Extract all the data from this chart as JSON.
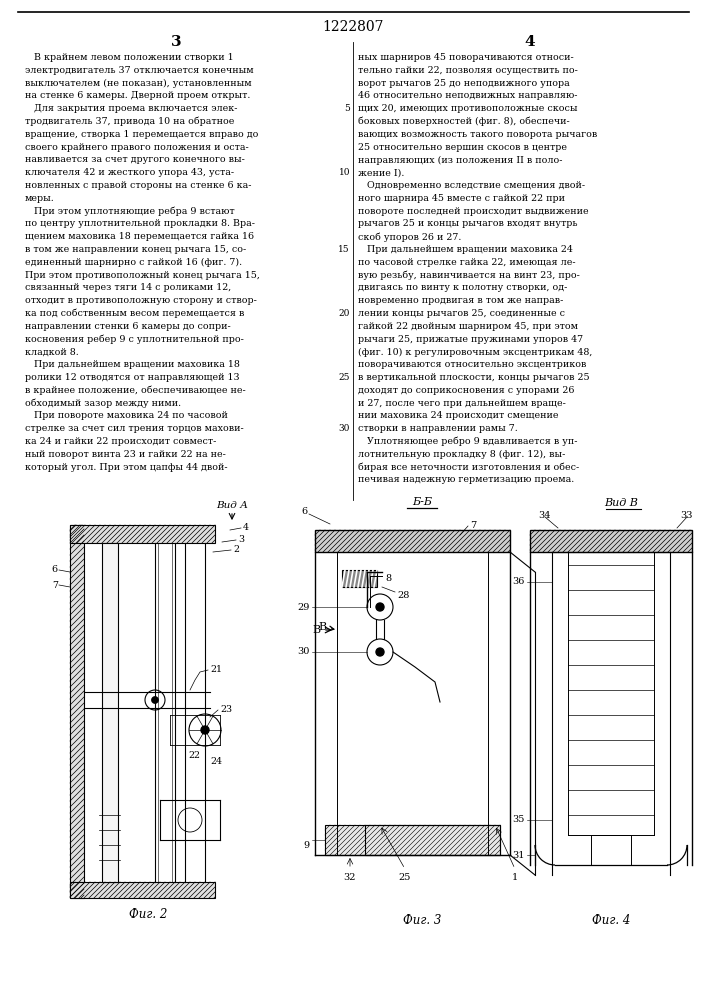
{
  "title": "1222807",
  "page_col_left": "3",
  "page_col_right": "4",
  "bg_color": "#ffffff",
  "text_color": "#000000",
  "text_left_lines": [
    "   В крайнем левом положении створки 1",
    "электродвигатель 37 отключается конечным",
    "выключателем (не показан), установленным",
    "на стенке 6 камеры. Дверной проем открыт.",
    "   Для закрытия проема включается элек-",
    "тродвигатель 37, привода 10 на обратное",
    "вращение, створка 1 перемещается вправо до",
    "своего крайнего правого положения и оста-",
    "навливается за счет другого конечного вы-",
    "ключателя 42 и жесткого упора 43, уста-",
    "новленных с правой стороны на стенке 6 ка-",
    "меры.",
    "   При этом уплотняющие ребра 9 встают",
    "по центру уплотнительной прокладки 8. Вра-",
    "щением маховика 18 перемещается гайка 16",
    "в том же направлении конец рычага 15, со-",
    "единенный шарнирно с гайкой 16 (фиг. 7).",
    "При этом противоположный конец рычага 15,",
    "связанный через тяги 14 с роликами 12,",
    "отходит в противоположную сторону и створ-",
    "ка под собственным весом перемещается в",
    "направлении стенки 6 камеры до сопри-",
    "косновения ребер 9 с уплотнительной про-",
    "кладкой 8.",
    "   При дальнейшем вращении маховика 18",
    "ролики 12 отводятся от направляющей 13",
    "в крайнее положение, обеспечивающее не-",
    "обходимый зазор между ними.",
    "   При повороте маховика 24 по часовой",
    "стрелке за счет сил трения торцов махови-",
    "ка 24 и гайки 22 происходит совмест-",
    "ный поворот винта 23 и гайки 22 на не-",
    "который угол. При этом цапфы 44 двой-"
  ],
  "text_right_lines": [
    "ных шарниров 45 поворачиваются относи-",
    "тельно гайки 22, позволяя осуществить по-",
    "ворот рычагов 25 до неподвижного упора",
    "46 относительно неподвижных направляю-",
    "щих 20, имеющих противоположные скосы",
    "боковых поверхностей (фиг. 8), обеспечи-",
    "вающих возможность такого поворота рычагов",
    "25 относительно вершин скосов в центре",
    "направляющих (из положения II в поло-",
    "жение I).",
    "   Одновременно вследствие смещения двой-",
    "ного шарнира 45 вместе с гайкой 22 при",
    "повороте последней происходит выдвижение",
    "рычагов 25 и концы рычагов входят внутрь",
    "скоб упоров 26 и 27.",
    "   При дальнейшем вращении маховика 24",
    "по часовой стрелке гайка 22, имеющая ле-",
    "вую резьбу, навинчивается на винт 23, про-",
    "двигаясь по винту к полотну створки, од-",
    "новременно продвигая в том же направ-",
    "лении концы рычагов 25, соединенные с",
    "гайкой 22 двойным шарниром 45, при этом",
    "рычаги 25, прижатые пружинами упоров 47",
    "(фиг. 10) к регулировочным эксцентрикам 48,",
    "поворачиваются относительно эксцентриков",
    "в вертикальной плоскости, концы рычагов 25",
    "доходят до соприкосновения с упорами 26",
    "и 27, после чего при дальнейшем враще-",
    "нии маховика 24 происходит смещение",
    "створки в направлении рамы 7.",
    "   Уплотняющее ребро 9 вдавливается в уп-",
    "лотнительную прокладку 8 (фиг. 12), вы-",
    "бирая все неточности изготовления и обес-",
    "печивая надежную герметизацию проема."
  ],
  "line_numbers": {
    "5": 4,
    "10": 9,
    "15": 15,
    "20": 20,
    "25": 25,
    "30": 29
  },
  "fig2_label": "Фиг. 2",
  "fig3_label": "Фиг. 3",
  "fig4_label": "Фиг. 4",
  "view_a_label": "Вид А",
  "view_bb_label": "Б-Б",
  "view_b_label": "Вид В"
}
